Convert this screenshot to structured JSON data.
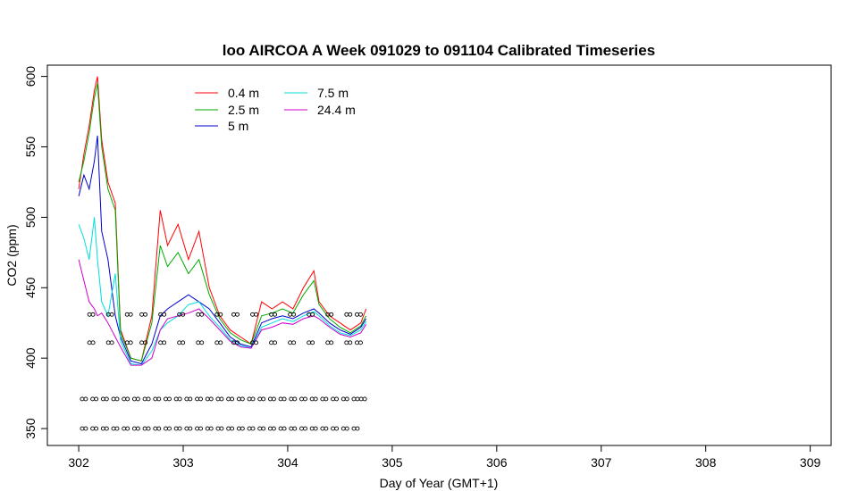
{
  "chart_data": {
    "type": "line",
    "title": "loo AIRCOA A  Week 091029 to 091104  Calibrated Timeseries",
    "xlabel": "Day of Year (GMT+1)",
    "ylabel": "CO2 (ppm)",
    "xlim": [
      301.7,
      309.2
    ],
    "ylim": [
      338,
      608
    ],
    "x_ticks": [
      302,
      303,
      304,
      305,
      306,
      307,
      308,
      309
    ],
    "x_tick_labels": [
      "302",
      "303",
      "304",
      "305",
      "306",
      "307",
      "308",
      "309"
    ],
    "y_ticks": [
      350,
      400,
      450,
      500,
      550,
      600
    ],
    "y_tick_labels": [
      "350",
      "400",
      "450",
      "500",
      "550",
      "600"
    ],
    "legend_position": "top-left",
    "series": [
      {
        "name": "0.4 m",
        "color": "#ff0000",
        "x": [
          302.0,
          302.05,
          302.1,
          302.15,
          302.18,
          302.22,
          302.28,
          302.35,
          302.4,
          302.5,
          302.6,
          302.7,
          302.78,
          302.85,
          302.95,
          303.05,
          303.15,
          303.25,
          303.35,
          303.45,
          303.55,
          303.65,
          303.75,
          303.85,
          303.95,
          304.05,
          304.15,
          304.25,
          304.3,
          304.4,
          304.5,
          304.6,
          304.7,
          304.75
        ],
        "values": [
          520,
          545,
          565,
          590,
          600,
          555,
          525,
          510,
          420,
          400,
          398,
          430,
          505,
          480,
          495,
          470,
          490,
          450,
          430,
          420,
          415,
          410,
          440,
          435,
          440,
          435,
          450,
          462,
          440,
          430,
          425,
          420,
          425,
          435
        ]
      },
      {
        "name": "2.5 m",
        "color": "#00aa00",
        "x": [
          302.0,
          302.05,
          302.1,
          302.15,
          302.18,
          302.22,
          302.28,
          302.35,
          302.4,
          302.5,
          302.6,
          302.7,
          302.78,
          302.85,
          302.95,
          303.05,
          303.15,
          303.25,
          303.35,
          303.45,
          303.55,
          303.65,
          303.75,
          303.85,
          303.95,
          304.05,
          304.15,
          304.25,
          304.3,
          304.4,
          304.5,
          304.6,
          304.7,
          304.75
        ],
        "values": [
          525,
          540,
          560,
          585,
          595,
          550,
          520,
          505,
          418,
          400,
          398,
          425,
          480,
          465,
          475,
          460,
          470,
          445,
          428,
          418,
          413,
          410,
          430,
          432,
          435,
          432,
          445,
          455,
          438,
          428,
          422,
          418,
          423,
          430
        ]
      },
      {
        "name": "5 m",
        "color": "#0000cc",
        "x": [
          302.0,
          302.05,
          302.1,
          302.15,
          302.18,
          302.22,
          302.28,
          302.35,
          302.4,
          302.5,
          302.6,
          302.7,
          302.78,
          302.85,
          302.95,
          303.05,
          303.15,
          303.25,
          303.35,
          303.45,
          303.55,
          303.65,
          303.75,
          303.85,
          303.95,
          304.05,
          304.15,
          304.25,
          304.3,
          304.4,
          304.5,
          304.6,
          304.7,
          304.75
        ],
        "values": [
          515,
          530,
          520,
          540,
          558,
          490,
          470,
          430,
          415,
          398,
          396,
          410,
          430,
          435,
          440,
          445,
          440,
          435,
          425,
          415,
          410,
          408,
          425,
          428,
          430,
          428,
          432,
          435,
          432,
          425,
          420,
          417,
          422,
          428
        ]
      },
      {
        "name": "7.5 m",
        "color": "#00dddd",
        "x": [
          302.0,
          302.05,
          302.1,
          302.15,
          302.18,
          302.22,
          302.28,
          302.35,
          302.4,
          302.5,
          302.6,
          302.7,
          302.78,
          302.85,
          302.95,
          303.05,
          303.15,
          303.25,
          303.35,
          303.45,
          303.55,
          303.65,
          303.75,
          303.85,
          303.95,
          304.05,
          304.15,
          304.25,
          304.3,
          304.4,
          304.5,
          304.6,
          304.7,
          304.75
        ],
        "values": [
          495,
          485,
          470,
          500,
          470,
          440,
          430,
          460,
          412,
          396,
          395,
          405,
          420,
          425,
          430,
          438,
          440,
          430,
          422,
          413,
          409,
          407,
          422,
          425,
          428,
          426,
          430,
          433,
          430,
          423,
          418,
          416,
          420,
          426
        ]
      },
      {
        "name": "24.4 m",
        "color": "#cc00cc",
        "x": [
          302.0,
          302.05,
          302.1,
          302.15,
          302.18,
          302.22,
          302.28,
          302.35,
          302.4,
          302.5,
          302.6,
          302.7,
          302.78,
          302.85,
          302.95,
          303.05,
          303.15,
          303.25,
          303.35,
          303.45,
          303.55,
          303.65,
          303.75,
          303.85,
          303.95,
          304.05,
          304.15,
          304.25,
          304.3,
          304.4,
          304.5,
          304.6,
          304.7,
          304.75
        ],
        "values": [
          470,
          455,
          440,
          435,
          430,
          432,
          425,
          415,
          408,
          395,
          395,
          400,
          420,
          428,
          430,
          432,
          435,
          428,
          420,
          412,
          408,
          407,
          420,
          422,
          425,
          424,
          428,
          430,
          428,
          422,
          417,
          415,
          418,
          424
        ]
      }
    ],
    "reference_markers": [
      {
        "y": 350,
        "x": [
          302.05,
          302.15,
          302.25,
          302.35,
          302.45,
          302.55,
          302.65,
          302.75,
          302.85,
          302.95,
          303.05,
          303.15,
          303.25,
          303.35,
          303.45,
          303.55,
          303.65,
          303.75,
          303.85,
          303.95,
          304.05,
          304.15,
          304.25,
          304.35,
          304.45,
          304.55,
          304.65
        ]
      },
      {
        "y": 371,
        "x": [
          302.05,
          302.15,
          302.25,
          302.35,
          302.45,
          302.55,
          302.65,
          302.75,
          302.85,
          302.95,
          303.05,
          303.15,
          303.25,
          303.35,
          303.45,
          303.55,
          303.65,
          303.75,
          303.85,
          303.95,
          304.05,
          304.15,
          304.25,
          304.35,
          304.45,
          304.55,
          304.65,
          304.72
        ]
      },
      {
        "y": 411,
        "x": [
          302.12,
          302.3,
          302.48,
          302.62,
          302.8,
          302.98,
          303.16,
          303.34,
          303.5,
          303.68,
          303.86,
          304.04,
          304.22,
          304.4,
          304.58,
          304.68
        ]
      },
      {
        "y": 431,
        "x": [
          302.12,
          302.3,
          302.48,
          302.62,
          302.8,
          302.98,
          303.16,
          303.34,
          303.5,
          303.68,
          303.86,
          304.04,
          304.22,
          304.4,
          304.58,
          304.68
        ]
      }
    ]
  }
}
